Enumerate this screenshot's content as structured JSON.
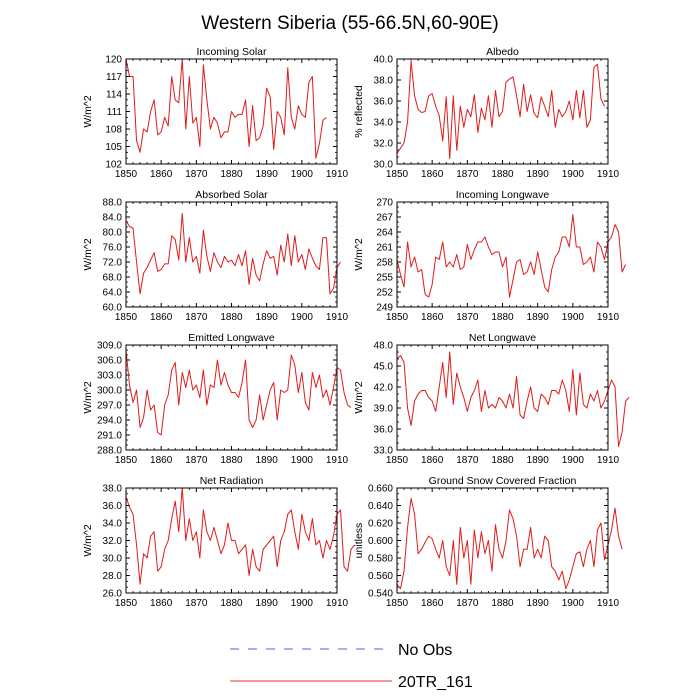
{
  "title": "Western Siberia (55-66.5N,60-90E)",
  "legend": [
    {
      "label": "No Obs",
      "color": "#6a5acd",
      "style": "dashed"
    },
    {
      "label": "20TR_161",
      "color": "#e8332a",
      "style": "solid"
    }
  ],
  "line_color": "#e01b1b",
  "chart_data": [
    {
      "type": "line",
      "title": "Incoming Solar",
      "ylabel": "W/m^2",
      "xlim": [
        1850,
        1910
      ],
      "ylim": [
        102,
        120
      ],
      "xticks": [
        "1850",
        "1860",
        "1870",
        "1880",
        "1890",
        "1900",
        "1910"
      ],
      "yticks": [
        "102",
        "105",
        "108",
        "111",
        "114",
        "117",
        "120"
      ],
      "x_start": 1850,
      "values": [
        120,
        117,
        117,
        106,
        104,
        108,
        107.5,
        111,
        113,
        107,
        107.5,
        110,
        108.5,
        117,
        113,
        112.5,
        120,
        108,
        117,
        109,
        110,
        105,
        119,
        113,
        108,
        110,
        109,
        106.5,
        107.5,
        107.5,
        111,
        110,
        110.5,
        110.5,
        113,
        105,
        112,
        106,
        106.5,
        108.5,
        115,
        113.5,
        104.5,
        111,
        110,
        107,
        118.5,
        110,
        108,
        112,
        110.5,
        110,
        116,
        117,
        103,
        105.5,
        109.5,
        110
      ]
    },
    {
      "type": "line",
      "title": "Albedo",
      "ylabel": "% reflected",
      "xlim": [
        1850,
        1910
      ],
      "ylim": [
        30.0,
        40.0
      ],
      "xticks": [
        "1850",
        "1860",
        "1870",
        "1880",
        "1890",
        "1900",
        "1910"
      ],
      "yticks": [
        "30.0",
        "32.0",
        "34.0",
        "36.0",
        "38.0",
        "40.0"
      ],
      "x_start": 1850,
      "values": [
        31,
        31.5,
        32,
        34,
        39.8,
        36.5,
        35.2,
        34.9,
        35,
        36.5,
        36.7,
        35.5,
        34.6,
        32.2,
        36.4,
        30.5,
        36.5,
        31.3,
        35.5,
        33.5,
        35.2,
        34.5,
        36.6,
        33,
        35.3,
        34.2,
        36.5,
        33.5,
        37,
        34.5,
        35,
        37.8,
        38.1,
        38.3,
        36.5,
        34.5,
        37.6,
        35,
        36.6,
        34.8,
        34.4,
        36.4,
        35.5,
        34.5,
        37,
        33.5,
        35.2,
        34.5,
        35,
        36,
        34.2,
        37,
        34.4,
        37,
        33.5,
        34.2,
        39.2,
        39.5,
        36.2,
        35.5
      ]
    },
    {
      "type": "line",
      "title": "Absorbed Solar",
      "ylabel": "W/m^2",
      "xlim": [
        1850,
        1910
      ],
      "ylim": [
        60.0,
        88.0
      ],
      "xticks": [
        "1850",
        "1860",
        "1870",
        "1880",
        "1890",
        "1900",
        "1910"
      ],
      "yticks": [
        "60.0",
        "64.0",
        "68.0",
        "72.0",
        "76.0",
        "80.0",
        "84.0",
        "88.0"
      ],
      "x_start": 1850,
      "values": [
        83,
        81.5,
        81,
        72,
        63.5,
        69,
        70.5,
        72.5,
        74.5,
        69.5,
        70,
        71.5,
        71.5,
        79,
        78,
        72.5,
        85,
        72,
        78.5,
        72,
        73.5,
        69,
        80.5,
        73.5,
        69.5,
        74.5,
        72,
        70.5,
        73.5,
        72,
        72.5,
        71,
        74,
        71,
        75,
        66,
        73,
        68.5,
        67,
        71.5,
        75,
        73,
        73.5,
        68.5,
        76.5,
        72,
        79.5,
        71,
        79,
        72,
        74,
        70,
        75.5,
        73,
        71,
        70,
        78.5,
        78.5,
        63.5,
        65,
        70.5,
        72
      ]
    },
    {
      "type": "line",
      "title": "Incoming Longwave",
      "ylabel": "W/m^2",
      "xlim": [
        1850,
        1910
      ],
      "ylim": [
        249,
        270
      ],
      "xticks": [
        "1850",
        "1860",
        "1870",
        "1880",
        "1890",
        "1900",
        "1910"
      ],
      "yticks": [
        "249",
        "252",
        "255",
        "258",
        "261",
        "264",
        "267",
        "270"
      ],
      "x_start": 1850,
      "values": [
        258.5,
        255.5,
        253,
        262,
        257,
        259,
        256,
        256.5,
        251.5,
        251,
        253.5,
        259,
        258.5,
        262,
        257,
        258,
        257,
        259.5,
        256.5,
        257,
        261.5,
        258.5,
        260.5,
        262,
        262,
        263,
        261,
        259.5,
        260,
        260,
        257,
        259,
        251,
        254.5,
        258,
        258.5,
        255.5,
        256,
        258,
        255.5,
        260,
        256.5,
        253,
        252,
        256.5,
        259,
        260,
        263,
        263,
        261,
        267.5,
        261,
        261,
        257.5,
        258,
        259,
        256,
        262,
        261,
        258.5,
        262,
        263,
        265.5,
        264,
        256,
        257.5
      ]
    },
    {
      "type": "line",
      "title": "Emitted Longwave",
      "ylabel": "W/m^2",
      "xlim": [
        1850,
        1910
      ],
      "ylim": [
        288.0,
        309.0
      ],
      "xticks": [
        "1850",
        "1860",
        "1870",
        "1880",
        "1890",
        "1900",
        "1910"
      ],
      "yticks": [
        "288.0",
        "291.0",
        "294.0",
        "297.0",
        "300.0",
        "303.0",
        "306.0",
        "309.0"
      ],
      "x_start": 1850,
      "values": [
        308,
        301,
        297.5,
        300,
        292.5,
        294.5,
        300,
        296,
        297,
        291.5,
        291,
        297,
        299,
        304,
        305.5,
        297,
        303.5,
        300.5,
        304,
        300,
        301,
        298.5,
        304,
        297,
        301,
        300.5,
        306,
        301,
        303.5,
        301,
        299.5,
        299.5,
        298.5,
        301.5,
        306,
        294,
        292.5,
        294,
        299,
        294,
        297,
        300,
        301.5,
        294,
        300,
        299.5,
        300,
        307,
        305,
        299.5,
        303.5,
        297.5,
        296,
        303.5,
        300.5,
        303,
        298.5,
        300,
        297,
        300.5,
        304.5,
        304,
        299.5,
        297,
        296.5
      ]
    },
    {
      "type": "line",
      "title": "Net Longwave",
      "ylabel": "W/m^2",
      "xlim": [
        1850,
        1910
      ],
      "ylim": [
        33.0,
        48.0
      ],
      "xticks": [
        "1850",
        "1860",
        "1870",
        "1880",
        "1890",
        "1900",
        "1910"
      ],
      "yticks": [
        "33.0",
        "36.0",
        "39.0",
        "42.0",
        "45.0",
        "48.0"
      ],
      "x_start": 1850,
      "values": [
        46,
        46.5,
        45.5,
        39,
        36.5,
        40,
        41,
        41.5,
        41.5,
        40.5,
        40,
        38.5,
        42,
        45.5,
        40.5,
        47,
        39.5,
        44,
        42,
        40.5,
        38.5,
        40.5,
        41.5,
        43,
        38.5,
        41.5,
        39,
        39.5,
        39,
        40.5,
        40,
        39,
        41,
        39,
        43.5,
        38,
        37.5,
        40,
        42,
        39,
        38.5,
        41,
        40.5,
        39.5,
        41.5,
        41.5,
        41,
        43,
        41.5,
        38.5,
        44.5,
        38,
        44,
        39.5,
        39,
        41,
        40,
        41.5,
        39,
        40,
        41.5,
        43,
        42,
        33.5,
        35.5,
        40,
        40.5
      ]
    },
    {
      "type": "line",
      "title": "Net Radiation",
      "ylabel": "W/m^2",
      "xlim": [
        1850,
        1910
      ],
      "ylim": [
        26.0,
        38.0
      ],
      "xticks": [
        "1850",
        "1860",
        "1870",
        "1880",
        "1890",
        "1900",
        "1910"
      ],
      "yticks": [
        "26.0",
        "28.0",
        "30.0",
        "32.0",
        "34.0",
        "36.0",
        "38.0"
      ],
      "x_start": 1850,
      "values": [
        37,
        35.8,
        35,
        31.5,
        27,
        30.5,
        30,
        32.5,
        33,
        28.5,
        29,
        31,
        32,
        34.5,
        36.5,
        33,
        38,
        32,
        34.5,
        32,
        33,
        30,
        35.5,
        33,
        32,
        33.5,
        32,
        30.5,
        31.5,
        34,
        32,
        32,
        30.5,
        31,
        31.5,
        28,
        31,
        29,
        28.5,
        31,
        31.5,
        32,
        32.5,
        29,
        32,
        33,
        35,
        35.5,
        33,
        31,
        35,
        33,
        32,
        34.5,
        31.5,
        32,
        30,
        32,
        31,
        32.5,
        35,
        35.5,
        29,
        28.5,
        31,
        31.5
      ]
    },
    {
      "type": "line",
      "title": "Ground Snow Covered Fraction",
      "ylabel": "unitless",
      "xlim": [
        1850,
        1910
      ],
      "ylim": [
        0.54,
        0.66
      ],
      "xticks": [
        "1850",
        "1860",
        "1870",
        "1880",
        "1890",
        "1900",
        "1910"
      ],
      "yticks": [
        "0.540",
        "0.560",
        "0.580",
        "0.600",
        "0.620",
        "0.640",
        "0.660"
      ],
      "x_start": 1850,
      "values": [
        0.55,
        0.545,
        0.565,
        0.615,
        0.648,
        0.63,
        0.585,
        0.59,
        0.598,
        0.605,
        0.602,
        0.59,
        0.58,
        0.6,
        0.57,
        0.56,
        0.6,
        0.55,
        0.615,
        0.58,
        0.6,
        0.55,
        0.612,
        0.58,
        0.61,
        0.585,
        0.6,
        0.565,
        0.618,
        0.59,
        0.58,
        0.6,
        0.635,
        0.625,
        0.605,
        0.57,
        0.59,
        0.59,
        0.615,
        0.58,
        0.59,
        0.58,
        0.605,
        0.6,
        0.57,
        0.565,
        0.555,
        0.565,
        0.545,
        0.555,
        0.57,
        0.585,
        0.587,
        0.57,
        0.59,
        0.6,
        0.57,
        0.612,
        0.62,
        0.578,
        0.595,
        0.612,
        0.637,
        0.605,
        0.59
      ]
    }
  ]
}
